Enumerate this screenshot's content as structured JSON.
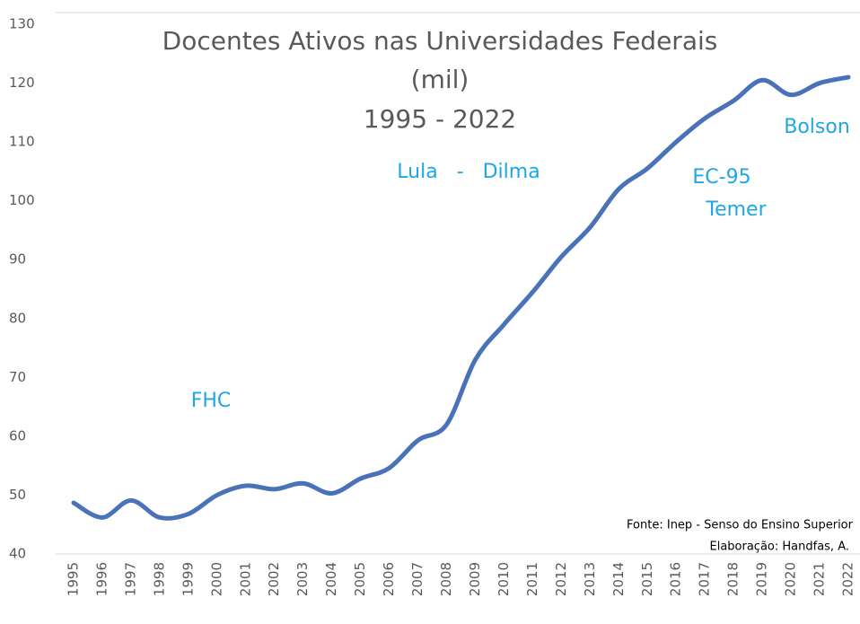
{
  "chart_data": {
    "type": "line",
    "title": [
      "Docentes Ativos nas Universidades Federais",
      "(mil)",
      "1995 - 2022"
    ],
    "categories": [
      "1995",
      "1996",
      "1997",
      "1998",
      "1999",
      "2000",
      "2001",
      "2002",
      "2003",
      "2004",
      "2005",
      "2006",
      "2007",
      "2008",
      "2009",
      "2010",
      "2011",
      "2012",
      "2013",
      "2014",
      "2015",
      "2016",
      "2017",
      "2018",
      "2019",
      "2020",
      "2021",
      "2022"
    ],
    "series": [
      {
        "name": "Docentes",
        "color": "#4a72b8",
        "values": [
          48.7,
          46.2,
          49.1,
          46.2,
          46.8,
          50,
          51.6,
          51,
          52,
          50.3,
          52.8,
          54.6,
          59.3,
          62,
          73,
          79,
          84.5,
          90.5,
          95.5,
          102,
          105.5,
          110,
          114,
          117,
          120.5,
          118,
          120,
          121
        ]
      }
    ],
    "ylim": [
      40,
      130
    ],
    "yticks": [
      40,
      50,
      60,
      70,
      80,
      90,
      100,
      110,
      120,
      130
    ],
    "annotations": [
      "FHC",
      "Lula   -   Dilma",
      "EC-95",
      "Temer",
      "Bolson"
    ],
    "source": [
      "Fonte: Inep - Senso do Ensino Superior",
      "Elaboração: Handfas, A."
    ],
    "grid": false
  }
}
